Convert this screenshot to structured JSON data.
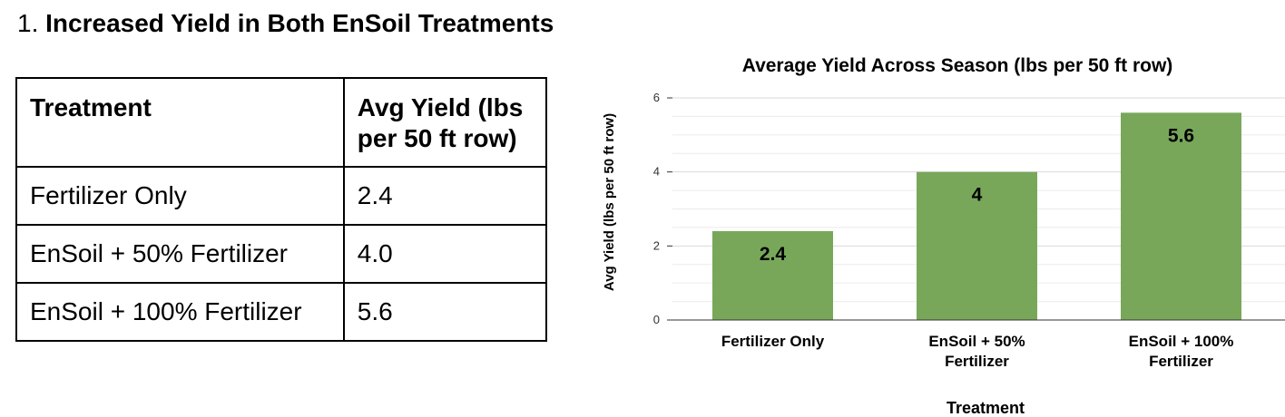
{
  "heading": {
    "number": "1.",
    "text": "Increased Yield in Both EnSoil Treatments"
  },
  "table": {
    "headers": [
      "Treatment",
      "Avg Yield (lbs per 50 ft row)"
    ],
    "rows": [
      [
        "Fertilizer Only",
        "2.4"
      ],
      [
        "EnSoil + 50% Fertilizer",
        "4.0"
      ],
      [
        "EnSoil + 100% Fertilizer",
        "5.6"
      ]
    ]
  },
  "chart_data": {
    "type": "bar",
    "title": "Average Yield Across Season (lbs per 50 ft row)",
    "xlabel": "Treatment",
    "ylabel": "Avg Yield (lbs per 50 ft row)",
    "categories": [
      "Fertilizer Only",
      "EnSoil + 50% Fertilizer",
      "EnSoil + 100% Fertilizer"
    ],
    "category_lines": [
      [
        "Fertilizer Only"
      ],
      [
        "EnSoil + 50%",
        "Fertilizer"
      ],
      [
        "EnSoil + 100%",
        "Fertilizer"
      ]
    ],
    "values": [
      2.4,
      4,
      5.6
    ],
    "data_labels": [
      "2.4",
      "4",
      "5.6"
    ],
    "ylim": [
      0,
      6
    ],
    "yticks": [
      0,
      2,
      4,
      6
    ],
    "grid": true,
    "legend": "none",
    "colors": {
      "bar": "#78a75a",
      "grid": "#d9d9d9",
      "axis": "#333333"
    }
  }
}
